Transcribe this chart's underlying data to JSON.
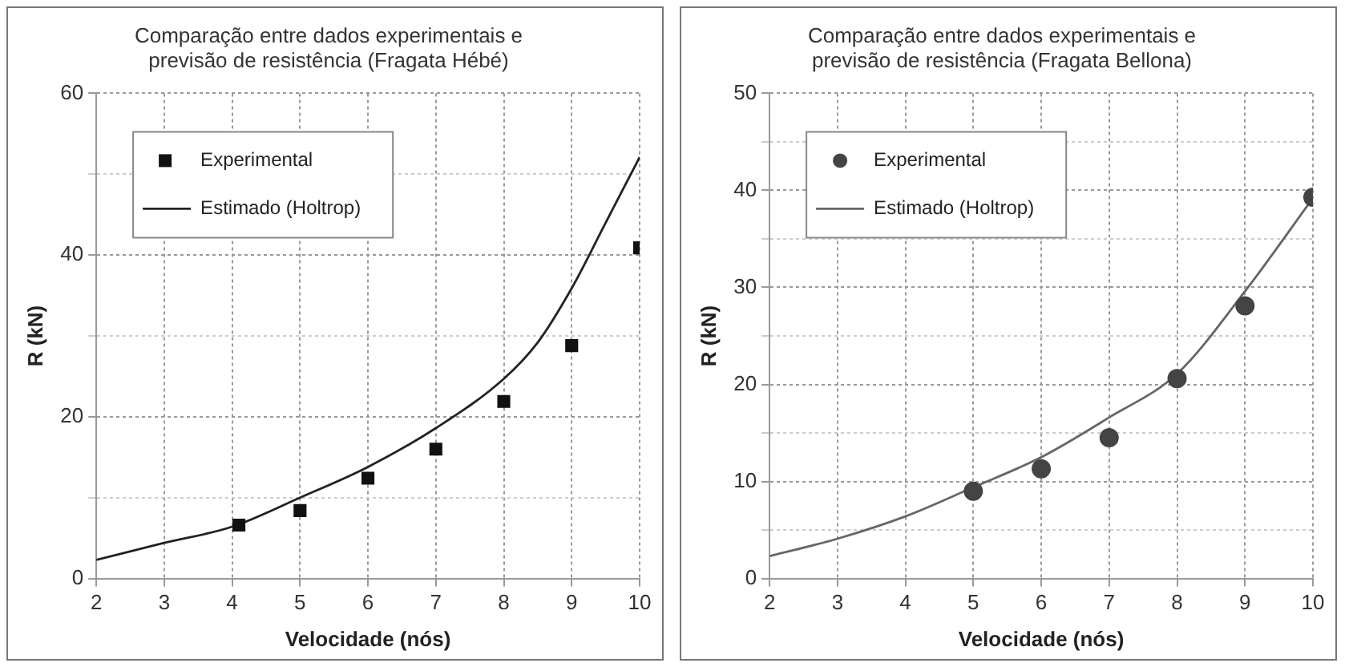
{
  "chart_data": [
    {
      "type": "scatter",
      "title": "Comparação entre dados experimentais e previsão de resistência (Fragata Hébé)",
      "xlabel": "Velocidade (nós)",
      "ylabel": "R (kN)",
      "xlim": [
        2,
        10
      ],
      "xticks": [
        2,
        3,
        4,
        5,
        6,
        7,
        8,
        9,
        10
      ],
      "ylim": [
        0,
        60
      ],
      "yticks": [
        0,
        {
          "value": 10,
          "label": null
        },
        20,
        {
          "value": 30,
          "label": null
        },
        40,
        {
          "value": 50,
          "label": null
        },
        60
      ],
      "grid": true,
      "legend": "top left",
      "series": [
        {
          "name": "Experimental",
          "type": "scatter",
          "marker": "square",
          "color": "#111111",
          "x": [
            4.1,
            5,
            6,
            7,
            8,
            9,
            10
          ],
          "values": [
            6.6,
            8.4,
            12.4,
            16.0,
            21.9,
            28.8,
            40.9
          ]
        },
        {
          "name": "Estimado (Holtrop)",
          "type": "line",
          "marker": "none",
          "line_style": "solid",
          "color": "#222222",
          "x": [
            2,
            3,
            4,
            5,
            6,
            7,
            8,
            8.5,
            9,
            9.5,
            10
          ],
          "values": [
            2.3,
            4.4,
            6.4,
            10.0,
            13.8,
            18.6,
            24.7,
            29.2,
            35.9,
            44,
            52.1
          ]
        }
      ]
    },
    {
      "type": "scatter",
      "title": "Comparação entre dados experimentais e previsão de resistência (Fragata Bellona)",
      "xlabel": "Velocidade (nós)",
      "ylabel": "R (kN)",
      "xlim": [
        2,
        10
      ],
      "xticks": [
        2,
        3,
        4,
        5,
        6,
        7,
        8,
        9,
        10
      ],
      "ylim": [
        0,
        50
      ],
      "yticks": [
        0,
        {
          "value": 5,
          "label": null
        },
        10,
        {
          "value": 15,
          "label": null
        },
        20,
        {
          "value": 25,
          "label": null
        },
        30,
        {
          "value": 35,
          "label": null
        },
        40,
        {
          "value": 45,
          "label": null
        },
        50
      ],
      "grid": true,
      "legend": "top left",
      "series": [
        {
          "name": "Experimental",
          "type": "scatter",
          "marker": "circle",
          "color": "#444444",
          "x": [
            5,
            6,
            7,
            8,
            9,
            10
          ],
          "values": [
            9.0,
            11.3,
            14.5,
            20.6,
            28.1,
            39.3
          ]
        },
        {
          "name": "Estimado (Holtrop)",
          "type": "line",
          "marker": "none",
          "line_style": "solid",
          "color": "#666666",
          "x": [
            2,
            3,
            4,
            5,
            6,
            7,
            8,
            9,
            10
          ],
          "values": [
            2.3,
            4.1,
            6.4,
            9.4,
            12.5,
            16.6,
            21.1,
            29.6,
            39.2
          ]
        }
      ]
    }
  ]
}
